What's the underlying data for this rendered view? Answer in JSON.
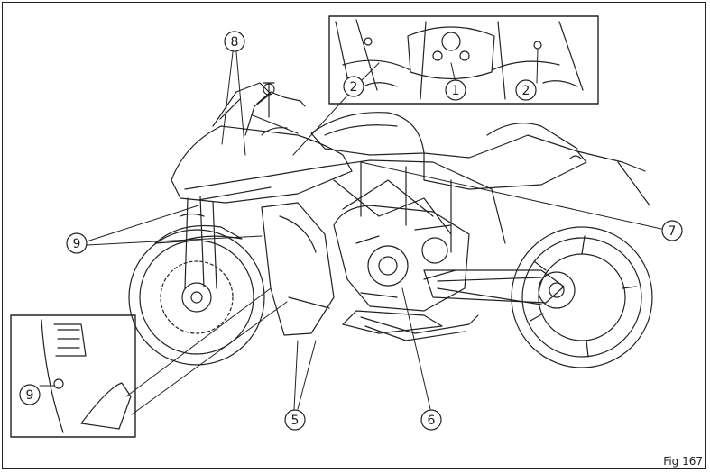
{
  "figure": {
    "label": "Fig 167"
  },
  "callouts": {
    "c1": "1",
    "c2a": "2",
    "c2b": "2",
    "c5": "5",
    "c6": "6",
    "c7": "7",
    "c8": "8",
    "c9a": "9",
    "c9b": "9"
  },
  "colors": {
    "line": "#222222",
    "background": "#ffffff"
  }
}
